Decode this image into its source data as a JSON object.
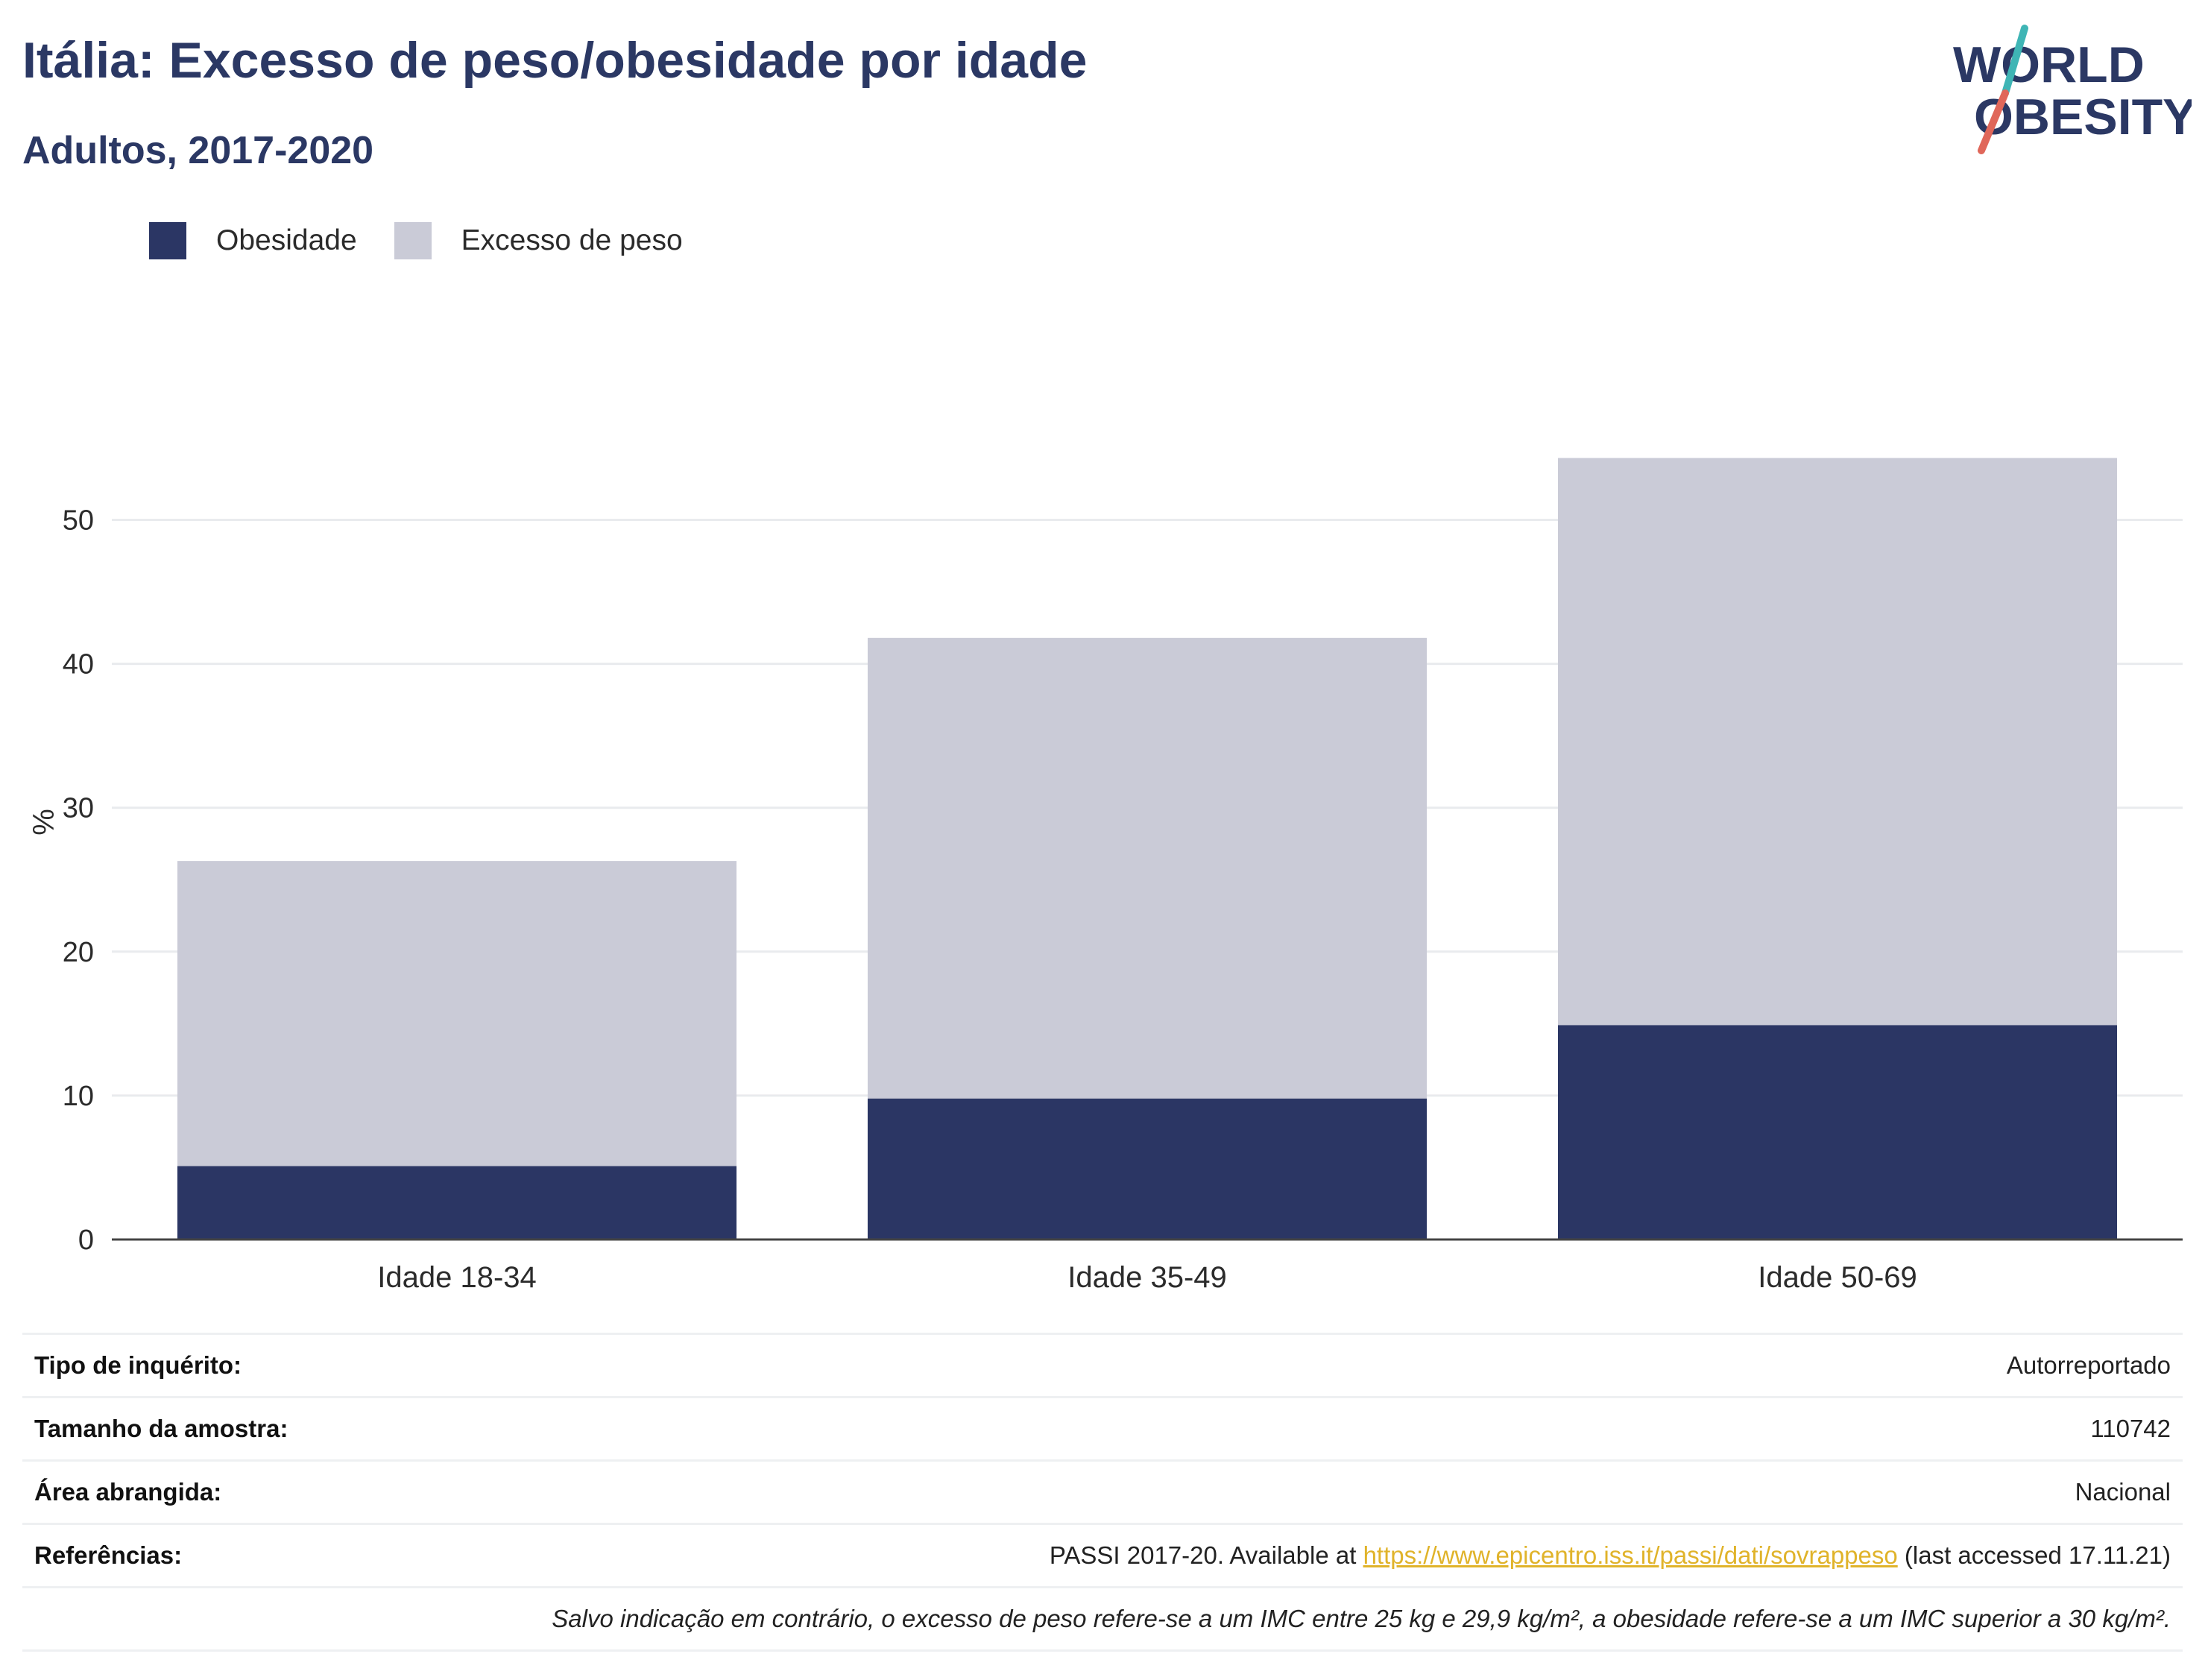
{
  "header": {
    "title": "Itália: Excesso de peso/obesidade por idade",
    "subtitle": "Adultos, 2017-2020"
  },
  "logo": {
    "line1": "WORLD",
    "line2": "OBESITY",
    "colors": {
      "text": "#2b3864",
      "slash_top": "#3fb5b5",
      "slash_bottom": "#e0675a"
    }
  },
  "legend": {
    "items": [
      {
        "label": "Obesidade",
        "color": "#2b3664"
      },
      {
        "label": "Excesso de peso",
        "color": "#cacbd7"
      }
    ]
  },
  "chart_data": {
    "type": "bar",
    "stacked": true,
    "categories": [
      "Idade 18-34",
      "Idade 35-49",
      "Idade 50-69"
    ],
    "series": [
      {
        "name": "Obesidade",
        "color": "#2b3664",
        "values": [
          5.1,
          9.8,
          14.9
        ]
      },
      {
        "name": "Excesso de peso",
        "color": "#cacbd7",
        "values": [
          21.2,
          32.0,
          39.4
        ]
      }
    ],
    "ylabel": "%",
    "ylim": [
      0,
      58
    ],
    "yticks": [
      0,
      10,
      20,
      30,
      40,
      50
    ],
    "grid": true,
    "legend_position": "top-left"
  },
  "metadata": {
    "survey_type_label": "Tipo de inquérito:",
    "survey_type_value": "Autorreportado",
    "sample_size_label": "Tamanho da amostra:",
    "sample_size_value": "110742",
    "area_label": "Área abrangida:",
    "area_value": "Nacional",
    "references_label": "Referências:",
    "references_prefix": "PASSI 2017-20. Available at",
    "references_link": "https://www.epicentro.iss.it/passi/dati/sovrappeso",
    "references_suffix": "(last accessed 17.11.21)",
    "note": "Salvo indicação em contrário, o excesso de peso refere-se a um IMC entre 25 kg e 29,9 kg/m², a obesidade refere-se a um IMC superior a 30 kg/m²."
  }
}
